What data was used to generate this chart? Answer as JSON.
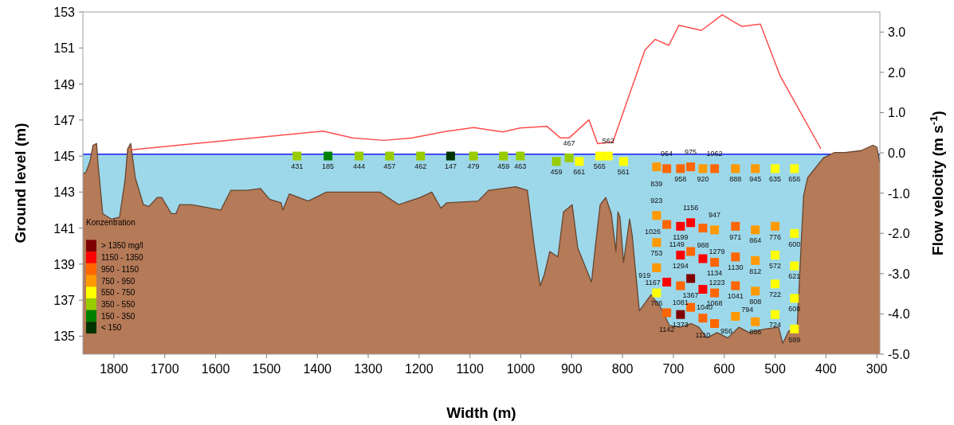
{
  "chart_data": {
    "type": "scatter",
    "xlabel": "Width (m)",
    "ylabel": "Ground level (m)",
    "y2label": "Flow velocity (m s$^{-1}$)",
    "legend_title": "Konzentration",
    "legend": "bottom left",
    "grid": false,
    "xlim": [
      1861,
      294
    ],
    "xticks": [
      1800,
      1700,
      1600,
      1500,
      1400,
      1300,
      1200,
      1100,
      1000,
      900,
      800,
      700,
      600,
      500,
      400,
      300
    ],
    "ylim": [
      134,
      153
    ],
    "yticks": [
      135,
      137,
      139,
      141,
      143,
      145,
      147,
      149,
      151,
      153
    ],
    "y2lim": [
      -5,
      3.5
    ],
    "y2ticks": [
      {
        "value": 3,
        "label": "3.0"
      },
      {
        "value": 2,
        "label": "2.0"
      },
      {
        "value": 1,
        "label": "1.0"
      },
      {
        "value": 0,
        "label": "0.0"
      },
      {
        "value": -1,
        "label": "-1.0"
      },
      {
        "value": -2,
        "label": "-2.0"
      },
      {
        "value": -3,
        "label": "-3.0"
      },
      {
        "value": -4,
        "label": "-4.0"
      },
      {
        "value": -5,
        "label": "-5.0"
      }
    ],
    "bands": [
      {
        "axis": "y",
        "from": 134,
        "to": 145.1,
        "color": "#9dd8ea"
      }
    ],
    "ref_lines": [
      {
        "axis": "y",
        "value": 145.1,
        "color": "#1a1aff",
        "line_style": "solid"
      }
    ],
    "series": [
      {
        "type": "area",
        "color": "#b57a57",
        "x": [
          1861,
          1855,
          1847,
          1841,
          1834,
          1831,
          1822,
          1805,
          1789,
          1778,
          1773,
          1767,
          1758,
          1742,
          1731,
          1715,
          1706,
          1687,
          1678,
          1671,
          1648,
          1628,
          1590,
          1570,
          1538,
          1512,
          1494,
          1471,
          1468,
          1455,
          1418,
          1382,
          1335,
          1277,
          1240,
          1198,
          1175,
          1157,
          1146,
          1084,
          1063,
          1010,
          987,
          974,
          962,
          954,
          943,
          927,
          916,
          899,
          888,
          861,
          853,
          844,
          833,
          822,
          813,
          809,
          805,
          798,
          786,
          781,
          767,
          744,
          723,
          708,
          687,
          665,
          650,
          634,
          614,
          593,
          571,
          551,
          520,
          493,
          485,
          473,
          457,
          449,
          444,
          436,
          405,
          383,
          363,
          331,
          308,
          300,
          294
        ],
        "values": [
          144.0,
          144.1,
          144.7,
          145.6,
          145.7,
          144.5,
          141.8,
          141.5,
          141.6,
          143.7,
          145.4,
          145.7,
          143.8,
          142.3,
          142.2,
          142.7,
          142.7,
          141.8,
          141.8,
          142.3,
          142.3,
          142.2,
          142.0,
          143.1,
          143.1,
          143.2,
          142.6,
          142.4,
          142.0,
          142.9,
          142.5,
          143.0,
          143.0,
          143.0,
          142.3,
          142.7,
          143.0,
          142.1,
          142.4,
          142.5,
          143.1,
          143.3,
          143.1,
          140.1,
          137.8,
          138.4,
          139.7,
          139.4,
          141.9,
          142.3,
          139.9,
          138.0,
          140.1,
          142.3,
          142.7,
          141.8,
          139.7,
          141.9,
          141.6,
          139.1,
          141.5,
          140.6,
          136.4,
          137.3,
          136.5,
          135.6,
          135.5,
          135.7,
          135.5,
          134.9,
          135.2,
          134.9,
          135.5,
          135.2,
          135.4,
          135.5,
          134.6,
          135.3,
          135.2,
          140.0,
          142.8,
          143.8,
          144.9,
          145.2,
          145.2,
          145.3,
          145.6,
          145.5,
          144.6
        ]
      },
      {
        "type": "line",
        "axis": "y2",
        "color": "#ff4d4d",
        "x": [
          1769,
          1389,
          1331,
          1270,
          1213,
          1153,
          1093,
          1035,
          1001,
          949,
          922,
          905,
          866,
          849,
          819,
          756,
          736,
          709,
          689,
          645,
          604,
          566,
          529,
          490,
          410
        ],
        "values": [
          0.07,
          0.54,
          0.37,
          0.31,
          0.37,
          0.52,
          0.63,
          0.52,
          0.62,
          0.66,
          0.37,
          0.37,
          0.82,
          0.23,
          0.27,
          2.55,
          2.82,
          2.67,
          3.17,
          3.04,
          3.43,
          3.14,
          3.2,
          1.91,
          0.1
        ]
      },
      {
        "marker": "square",
        "name": "> 1350 mg/l",
        "color": "#800000",
        "x": [
          666,
          686
        ],
        "values": [
          138.2,
          136.2
        ]
      },
      {
        "marker": "square",
        "name": "1150 - 1350",
        "color": "#ff0000",
        "x": [
          686,
          666,
          686,
          642,
          713,
          642
        ],
        "values": [
          141.1,
          141.3,
          139.5,
          139.3,
          138.0,
          137.6
        ]
      },
      {
        "marker": "square",
        "name": "950 - 1150",
        "color": "#ff6600",
        "x": [
          713,
          686,
          666,
          619,
          713,
          642,
          578,
          666,
          619,
          578,
          686,
          619,
          578,
          713,
          666,
          642,
          619
        ],
        "values": [
          144.3,
          144.3,
          144.4,
          144.3,
          141.2,
          141.0,
          141.1,
          139.7,
          139.1,
          139.4,
          137.8,
          137.4,
          137.8,
          136.3,
          136.6,
          136.0,
          135.7
        ]
      },
      {
        "marker": "square",
        "name": "750 - 950",
        "color": "#ff9900",
        "x": [
          733,
          642,
          578,
          539,
          733,
          619,
          539,
          500,
          733,
          539,
          733,
          539,
          578,
          539
        ],
        "values": [
          144.4,
          144.3,
          144.3,
          144.3,
          141.7,
          140.9,
          140.9,
          141.1,
          140.2,
          139.2,
          138.8,
          137.5,
          136.1,
          135.8
        ]
      },
      {
        "marker": "square",
        "name": "550 - 750",
        "color": "#ffff00",
        "x": [
          885,
          845,
          828,
          798,
          500,
          462,
          462,
          500,
          462,
          500,
          462,
          733,
          500,
          462
        ],
        "values": [
          144.7,
          145.0,
          145.0,
          144.7,
          144.3,
          144.3,
          140.7,
          139.5,
          138.9,
          137.9,
          137.1,
          137.4,
          136.2,
          135.4
        ]
      },
      {
        "marker": "square",
        "name": "350 - 550",
        "color": "#99cc00",
        "x": [
          1440,
          1318,
          1258,
          1197,
          1093,
          1034,
          1001,
          930,
          905
        ],
        "values": [
          145.0,
          145.0,
          145.0,
          145.0,
          145.0,
          145.0,
          145.0,
          144.7,
          144.9
        ]
      },
      {
        "marker": "square",
        "name": "150 - 350",
        "color": "#008000",
        "x": [
          1379
        ],
        "values": [
          145.0
        ]
      },
      {
        "marker": "square",
        "name": "< 150",
        "color": "#003300",
        "x": [
          1138
        ],
        "values": [
          145.0
        ]
      }
    ],
    "annotations": [
      {
        "text": "431",
        "x": 1440,
        "y": 145.0
      },
      {
        "text": "185",
        "x": 1379,
        "y": 145.0
      },
      {
        "text": "444",
        "x": 1318,
        "y": 145.0
      },
      {
        "text": "457",
        "x": 1258,
        "y": 145.0
      },
      {
        "text": "462",
        "x": 1197,
        "y": 145.0
      },
      {
        "text": "147",
        "x": 1138,
        "y": 145.0
      },
      {
        "text": "479",
        "x": 1093,
        "y": 145.0
      },
      {
        "text": "459",
        "x": 1034,
        "y": 145.0
      },
      {
        "text": "463",
        "x": 1001,
        "y": 145.0
      },
      {
        "text": "459",
        "x": 930,
        "y": 144.7
      },
      {
        "text": "467",
        "x": 905,
        "y": 144.9
      },
      {
        "text": "661",
        "x": 885,
        "y": 144.7
      },
      {
        "text": "565",
        "x": 845,
        "y": 145.0
      },
      {
        "text": "562",
        "x": 828,
        "y": 145.0
      },
      {
        "text": "561",
        "x": 798,
        "y": 144.7
      },
      {
        "text": "839",
        "x": 733,
        "y": 144.4
      },
      {
        "text": "964",
        "x": 713,
        "y": 144.3
      },
      {
        "text": "958",
        "x": 686,
        "y": 144.3
      },
      {
        "text": "975",
        "x": 666,
        "y": 144.4
      },
      {
        "text": "920",
        "x": 642,
        "y": 144.3
      },
      {
        "text": "1062",
        "x": 619,
        "y": 144.3
      },
      {
        "text": "888",
        "x": 578,
        "y": 144.3
      },
      {
        "text": "945",
        "x": 539,
        "y": 144.3
      },
      {
        "text": "635",
        "x": 500,
        "y": 144.3
      },
      {
        "text": "656",
        "x": 462,
        "y": 144.3
      },
      {
        "text": "923",
        "x": 733,
        "y": 141.7
      },
      {
        "text": "1026",
        "x": 713,
        "y": 141.2
      },
      {
        "text": "1199",
        "x": 686,
        "y": 141.1
      },
      {
        "text": "1156",
        "x": 666,
        "y": 141.3
      },
      {
        "text": "988",
        "x": 642,
        "y": 141.0
      },
      {
        "text": "947",
        "x": 619,
        "y": 140.9
      },
      {
        "text": "971",
        "x": 578,
        "y": 141.1
      },
      {
        "text": "864",
        "x": 539,
        "y": 140.9
      },
      {
        "text": "776",
        "x": 500,
        "y": 141.1
      },
      {
        "text": "600",
        "x": 462,
        "y": 140.7
      },
      {
        "text": "753",
        "x": 733,
        "y": 140.2
      },
      {
        "text": "1294",
        "x": 686,
        "y": 139.5
      },
      {
        "text": "1149",
        "x": 666,
        "y": 139.7
      },
      {
        "text": "1279",
        "x": 642,
        "y": 139.3
      },
      {
        "text": "1134",
        "x": 619,
        "y": 139.1
      },
      {
        "text": "1130",
        "x": 578,
        "y": 139.4
      },
      {
        "text": "812",
        "x": 539,
        "y": 139.2
      },
      {
        "text": "572",
        "x": 500,
        "y": 139.5
      },
      {
        "text": "621",
        "x": 462,
        "y": 138.9
      },
      {
        "text": "919",
        "x": 733,
        "y": 138.8
      },
      {
        "text": "1167",
        "x": 713,
        "y": 138.0
      },
      {
        "text": "1367",
        "x": 666,
        "y": 138.2
      },
      {
        "text": "1081",
        "x": 686,
        "y": 137.8
      },
      {
        "text": "1223",
        "x": 642,
        "y": 137.6
      },
      {
        "text": "1068",
        "x": 619,
        "y": 137.4
      },
      {
        "text": "1041",
        "x": 578,
        "y": 137.8
      },
      {
        "text": "808",
        "x": 539,
        "y": 137.5
      },
      {
        "text": "722",
        "x": 500,
        "y": 137.9
      },
      {
        "text": "608",
        "x": 462,
        "y": 137.1
      },
      {
        "text": "706",
        "x": 733,
        "y": 137.4
      },
      {
        "text": "1142",
        "x": 713,
        "y": 136.3
      },
      {
        "text": "1373",
        "x": 686,
        "y": 136.2
      },
      {
        "text": "1040",
        "x": 666,
        "y": 136.6
      },
      {
        "text": "1110",
        "x": 642,
        "y": 136.0
      },
      {
        "text": "956",
        "x": 619,
        "y": 135.7
      },
      {
        "text": "794",
        "x": 578,
        "y": 136.1
      },
      {
        "text": "856",
        "x": 539,
        "y": 135.8
      },
      {
        "text": "724",
        "x": 500,
        "y": 136.2
      },
      {
        "text": "589",
        "x": 462,
        "y": 135.4
      }
    ]
  }
}
